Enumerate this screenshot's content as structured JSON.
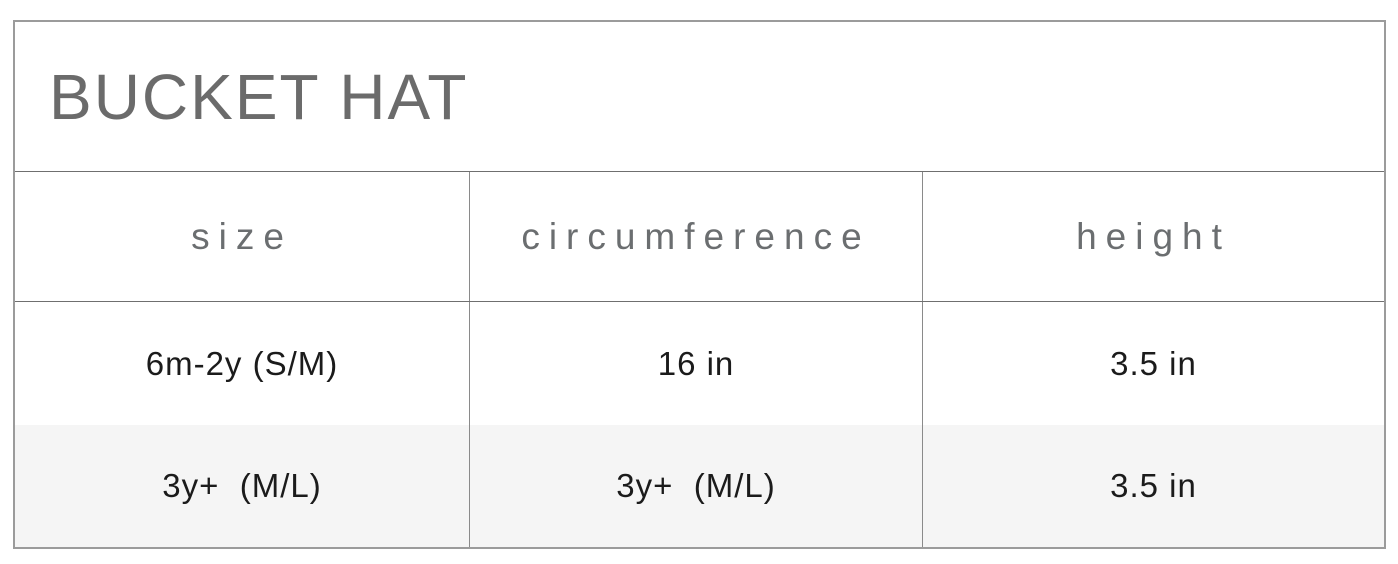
{
  "chart_data": {
    "type": "table",
    "title": "BUCKET HAT",
    "columns": [
      "size",
      "circumference",
      "height"
    ],
    "rows": [
      [
        "6m-2y (S/M)",
        "16 in",
        "3.5 in"
      ],
      [
        "3y+  (M/L)",
        "3y+  (M/L)",
        "3.5 in"
      ]
    ],
    "layout_hints": {
      "alt_row_shading": "second data row shaded light gray",
      "no_divider_between_data_rows": true
    }
  },
  "colors": {
    "title-text": "#6b6b6b",
    "header-text": "#6b6e70",
    "body-text": "#1b1b1b",
    "outer-border": "#9b9b9b",
    "inner-border": "#6f6f6f",
    "column-border": "#8a8a8a",
    "alt-row-bg": "#f5f5f5"
  }
}
